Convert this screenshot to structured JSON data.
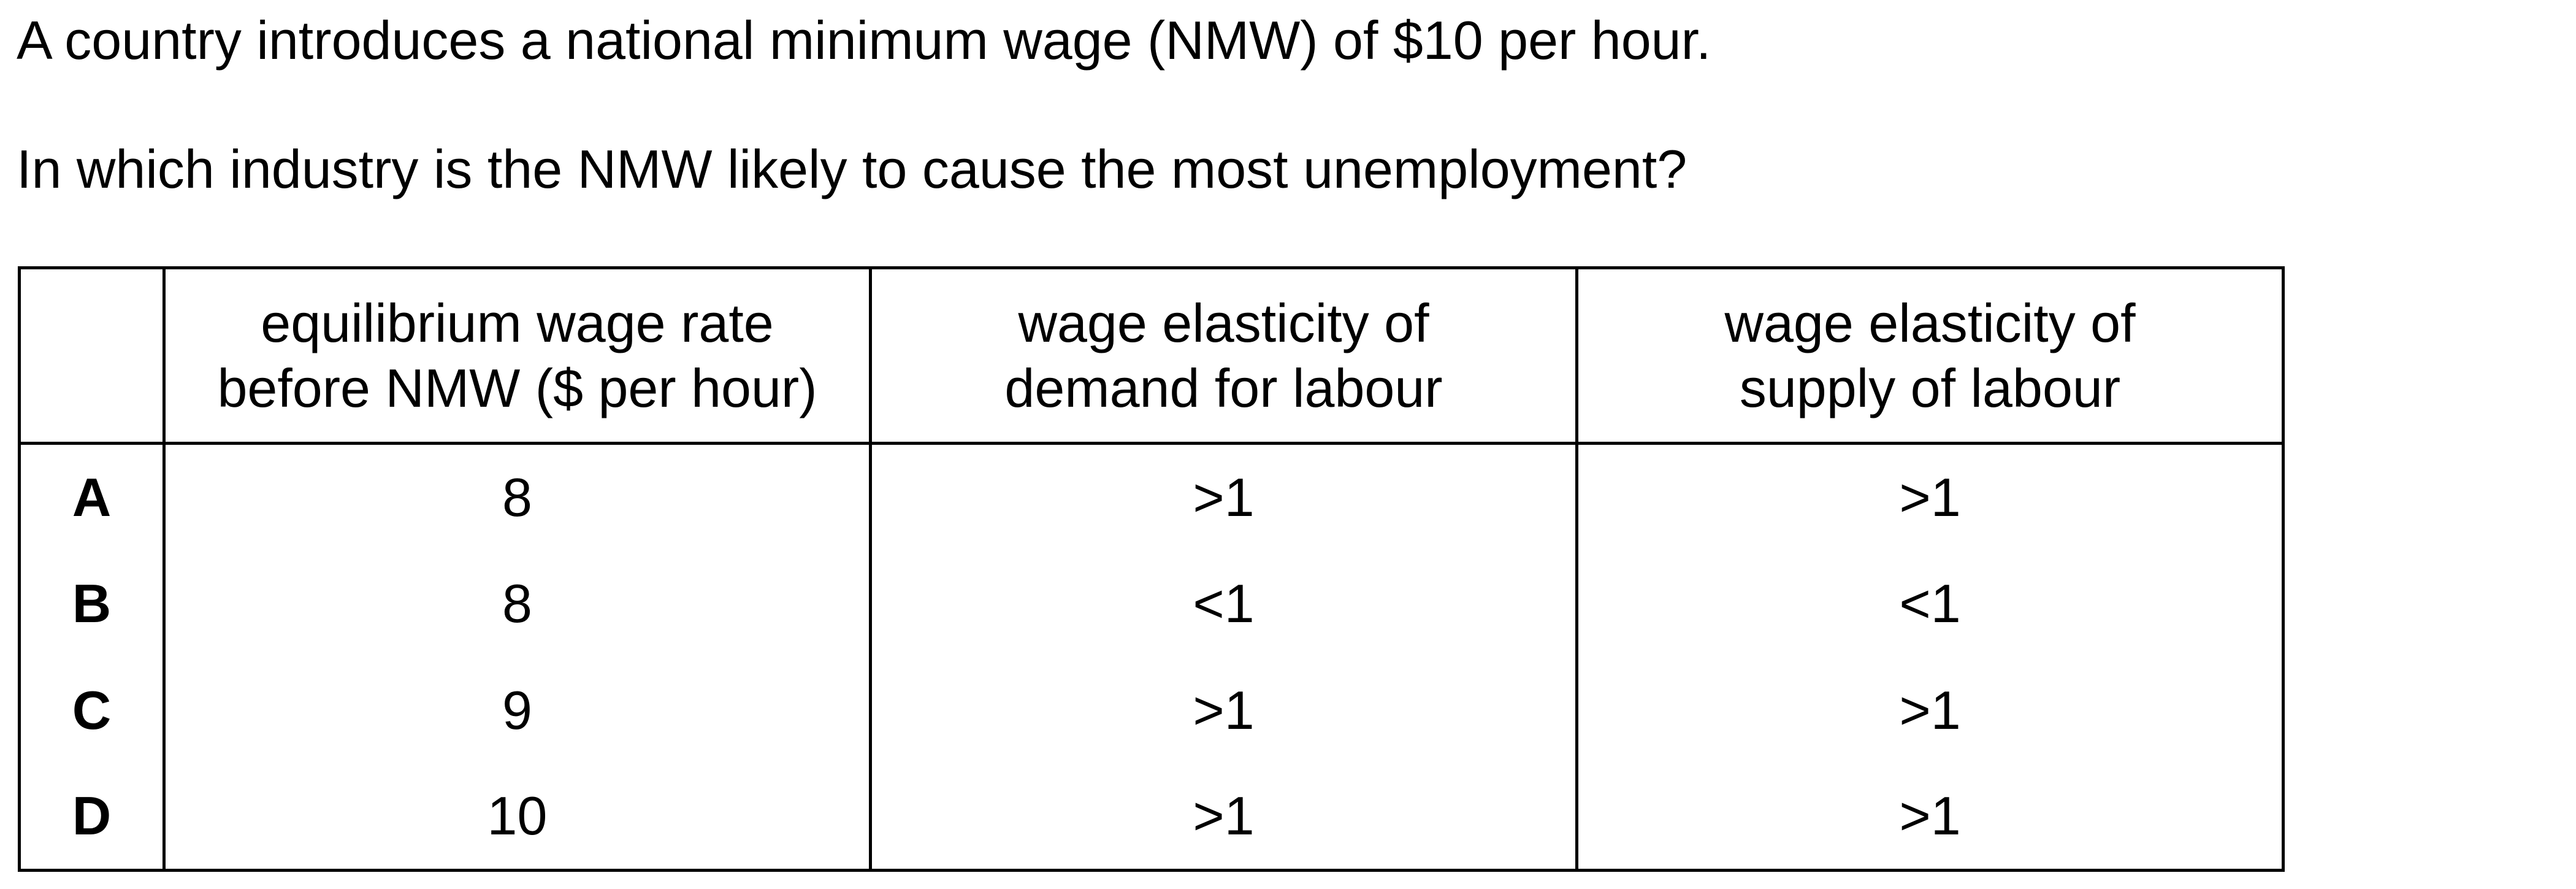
{
  "question": {
    "stem_line_1": "A country introduces a national minimum wage (NMW) of $10 per hour.",
    "stem_line_2": "In which industry is the NMW likely to cause the most unemployment?"
  },
  "table": {
    "headers": {
      "key": "",
      "wage_rate": [
        "equilibrium wage rate",
        "before NMW ($ per hour)"
      ],
      "demand_elasticity": [
        "wage elasticity of",
        "demand for labour"
      ],
      "supply_elasticity": [
        "wage elasticity of",
        "supply of labour"
      ]
    },
    "rows": [
      {
        "key": "A",
        "wage_rate": "8",
        "demand_elasticity": ">1",
        "supply_elasticity": ">1"
      },
      {
        "key": "B",
        "wage_rate": "8",
        "demand_elasticity": "<1",
        "supply_elasticity": "<1"
      },
      {
        "key": "C",
        "wage_rate": "9",
        "demand_elasticity": ">1",
        "supply_elasticity": ">1"
      },
      {
        "key": "D",
        "wage_rate": "10",
        "demand_elasticity": ">1",
        "supply_elasticity": ">1"
      }
    ]
  }
}
